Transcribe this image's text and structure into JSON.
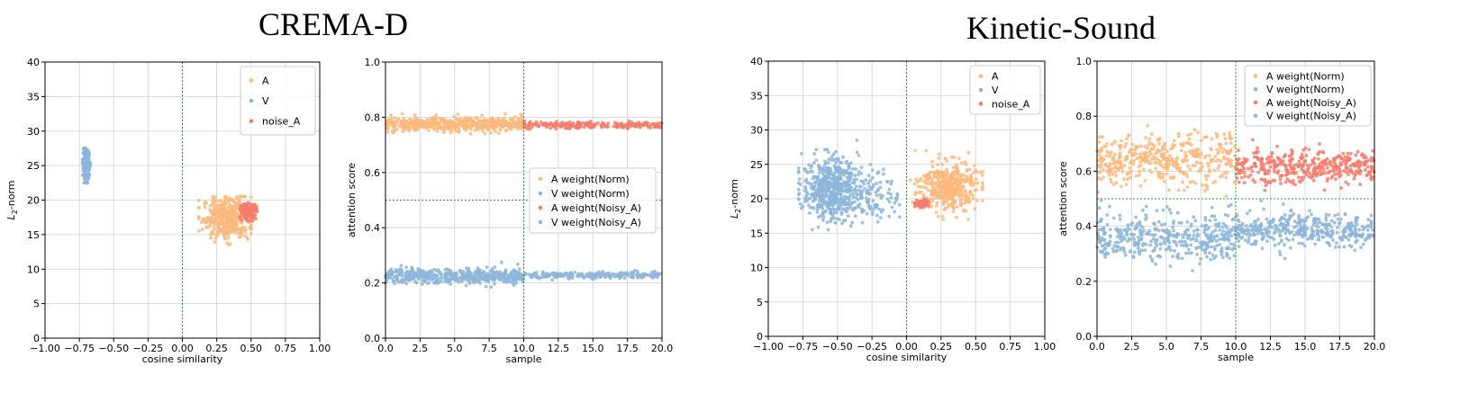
{
  "figure": {
    "groups": [
      {
        "title": "CREMA-D"
      },
      {
        "title": "Kinetic-Sound"
      }
    ]
  },
  "colors": {
    "A": "#fdb97c",
    "V": "#8db6d9",
    "noise_A": "#f47c6b",
    "grid": "#d0d0d0",
    "refline": "#2ca02c"
  },
  "chart_data": [
    {
      "type": "scatter",
      "group": "CREMA-D",
      "xlabel": "cosine similarity",
      "ylabel": "L2-norm",
      "xlim": [
        -1.0,
        1.0
      ],
      "ylim": [
        0,
        40
      ],
      "xticks": [
        -1.0,
        -0.75,
        -0.5,
        -0.25,
        0.0,
        0.25,
        0.5,
        0.75,
        1.0
      ],
      "xtick_labels": [
        "−1.00",
        "−0.75",
        "−0.50",
        "−0.25",
        "0.00",
        "0.25",
        "0.50",
        "0.75",
        "1.00"
      ],
      "yticks": [
        0,
        5,
        10,
        15,
        20,
        25,
        30,
        35,
        40
      ],
      "ytick_labels": [
        "0",
        "5",
        "10",
        "15",
        "20",
        "25",
        "30",
        "35",
        "40"
      ],
      "grid": true,
      "legend": "top-right",
      "vline_x": 0.0,
      "series": [
        {
          "name": "A",
          "color": "#fdb97c",
          "x_range": [
            0.12,
            0.5
          ],
          "y_range": [
            13.5,
            20.5
          ],
          "clusters": [
            {
              "cx": 0.33,
              "cy": 17.5,
              "sx": 0.09,
              "sy": 1.5,
              "n": 420
            }
          ]
        },
        {
          "name": "V",
          "color": "#8db6d9",
          "x_range": [
            -0.73,
            -0.66
          ],
          "y_range": [
            22.5,
            27.5
          ],
          "clusters": [
            {
              "cx": -0.7,
              "cy": 25.0,
              "sx": 0.012,
              "sy": 1.1,
              "n": 260
            }
          ]
        },
        {
          "name": "noise_A",
          "color": "#f47c6b",
          "x_range": [
            0.42,
            0.55
          ],
          "y_range": [
            17.0,
            19.8
          ],
          "clusters": [
            {
              "cx": 0.48,
              "cy": 18.4,
              "sx": 0.03,
              "sy": 0.55,
              "n": 140
            }
          ]
        }
      ]
    },
    {
      "type": "scatter",
      "group": "CREMA-D",
      "xlabel": "sample",
      "ylabel": "attention score",
      "xlim": [
        0.0,
        20.0
      ],
      "ylim": [
        0.0,
        1.0
      ],
      "xticks": [
        0,
        2.5,
        5,
        7.5,
        10,
        12.5,
        15,
        17.5,
        20
      ],
      "xtick_labels": [
        "0.0",
        "2.5",
        "5.0",
        "7.5",
        "10.0",
        "12.5",
        "15.0",
        "17.5",
        "20.0"
      ],
      "yticks": [
        0.0,
        0.2,
        0.4,
        0.6,
        0.8,
        1.0
      ],
      "ytick_labels": [
        "0.0",
        "0.2",
        "0.4",
        "0.6",
        "0.8",
        "1.0"
      ],
      "grid": true,
      "legend": "center-right",
      "vline_x": 10.0,
      "hline_y": 0.5,
      "series": [
        {
          "name": "A weight(Norm)",
          "color": "#fdb97c",
          "x_range": [
            0,
            10
          ],
          "y_mean": 0.775,
          "y_spread": 0.013,
          "n": 500
        },
        {
          "name": "V weight(Norm)",
          "color": "#8db6d9",
          "x_range": [
            0,
            10
          ],
          "y_mean": 0.225,
          "y_spread": 0.013,
          "n": 500
        },
        {
          "name": "A weight(Noisy_A)",
          "color": "#f47c6b",
          "x_range": [
            10,
            20
          ],
          "y_mean": 0.772,
          "y_spread": 0.006,
          "n": 220
        },
        {
          "name": "V weight(Noisy_A)",
          "color": "#8db6d9",
          "x_range": [
            10,
            20
          ],
          "y_mean": 0.228,
          "y_spread": 0.006,
          "n": 220
        }
      ]
    },
    {
      "type": "scatter",
      "group": "Kinetic-Sound",
      "xlabel": "cosine similarity",
      "ylabel": "L2-norm",
      "xlim": [
        -1.0,
        1.0
      ],
      "ylim": [
        0,
        40
      ],
      "xticks": [
        -1.0,
        -0.75,
        -0.5,
        -0.25,
        0.0,
        0.25,
        0.5,
        0.75,
        1.0
      ],
      "xtick_labels": [
        "−1.00",
        "−0.75",
        "−0.50",
        "−0.25",
        "0.00",
        "0.25",
        "0.50",
        "0.75",
        "1.00"
      ],
      "yticks": [
        0,
        5,
        10,
        15,
        20,
        25,
        30,
        35,
        40
      ],
      "ytick_labels": [
        "0",
        "5",
        "10",
        "15",
        "20",
        "25",
        "30",
        "35",
        "40"
      ],
      "grid": true,
      "legend": "top-right",
      "vline_x": 0.0,
      "series": [
        {
          "name": "A",
          "color": "#fdb97c",
          "x_range": [
            0.02,
            0.55
          ],
          "y_range": [
            17.0,
            27.0
          ],
          "clusters": [
            {
              "cx": 0.3,
              "cy": 21.8,
              "sx": 0.1,
              "sy": 1.8,
              "n": 420
            }
          ]
        },
        {
          "name": "V",
          "color": "#8db6d9",
          "x_range": [
            -0.78,
            -0.05
          ],
          "y_range": [
            15.5,
            28.5
          ],
          "clusters": [
            {
              "cx": -0.55,
              "cy": 21.5,
              "sx": 0.1,
              "sy": 2.2,
              "n": 550
            },
            {
              "cx": -0.25,
              "cy": 20.5,
              "sx": 0.1,
              "sy": 1.8,
              "n": 120
            }
          ]
        },
        {
          "name": "noise_A",
          "color": "#f47c6b",
          "x_range": [
            0.06,
            0.16
          ],
          "y_range": [
            18.7,
            19.9
          ],
          "clusters": [
            {
              "cx": 0.11,
              "cy": 19.3,
              "sx": 0.025,
              "sy": 0.25,
              "n": 90
            }
          ]
        }
      ]
    },
    {
      "type": "scatter",
      "group": "Kinetic-Sound",
      "xlabel": "sample",
      "ylabel": "attention score",
      "xlim": [
        0.0,
        20.0
      ],
      "ylim": [
        0.0,
        1.0
      ],
      "xticks": [
        0,
        2.5,
        5,
        7.5,
        10,
        12.5,
        15,
        17.5,
        20
      ],
      "xtick_labels": [
        "0.0",
        "2.5",
        "5.0",
        "7.5",
        "10.0",
        "12.5",
        "15.0",
        "17.5",
        "20.0"
      ],
      "yticks": [
        0.0,
        0.2,
        0.4,
        0.6,
        0.8,
        1.0
      ],
      "ytick_labels": [
        "0.0",
        "0.2",
        "0.4",
        "0.6",
        "0.8",
        "1.0"
      ],
      "grid": true,
      "legend": "top-right",
      "vline_x": 10.0,
      "hline_y": 0.5,
      "series": [
        {
          "name": "A weight(Norm)",
          "color": "#fdb97c",
          "x_range": [
            0,
            10
          ],
          "y_mean": 0.64,
          "y_spread": 0.045,
          "n": 420
        },
        {
          "name": "V weight(Norm)",
          "color": "#8db6d9",
          "x_range": [
            0,
            10
          ],
          "y_mean": 0.36,
          "y_spread": 0.045,
          "n": 420
        },
        {
          "name": "A weight(Noisy_A)",
          "color": "#f47c6b",
          "x_range": [
            10,
            20
          ],
          "y_mean": 0.615,
          "y_spread": 0.03,
          "n": 400
        },
        {
          "name": "V weight(Noisy_A)",
          "color": "#8db6d9",
          "x_range": [
            10,
            20
          ],
          "y_mean": 0.385,
          "y_spread": 0.03,
          "n": 400
        }
      ]
    }
  ]
}
